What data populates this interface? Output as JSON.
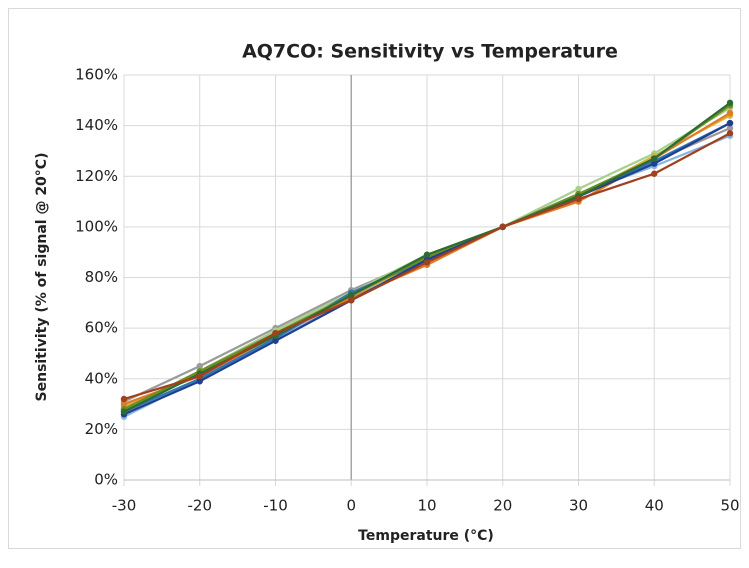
{
  "chart_data": {
    "type": "line",
    "title": "AQ7CO: Sensitivity vs Temperature",
    "x_label": "Temperature (°C)",
    "y_label": "Sensitivity (% of signal @ 20°C)",
    "x": [
      -30,
      -20,
      -10,
      0,
      10,
      20,
      30,
      40,
      50
    ],
    "xlim": [
      -30,
      50
    ],
    "xticks": [
      -30,
      -20,
      -10,
      0,
      10,
      20,
      30,
      40,
      50
    ],
    "ylim": [
      0,
      160
    ],
    "yticks": [
      {
        "value": 0,
        "label": "0%"
      },
      {
        "value": 20,
        "label": "20%"
      },
      {
        "value": 40,
        "label": "40%"
      },
      {
        "value": 60,
        "label": "60%"
      },
      {
        "value": 80,
        "label": "80%"
      },
      {
        "value": 100,
        "label": "100%"
      },
      {
        "value": 120,
        "label": "120%"
      },
      {
        "value": 140,
        "label": "140%"
      },
      {
        "value": 160,
        "label": "160%"
      }
    ],
    "grid": true,
    "series": [
      {
        "color": "#9a9a9a",
        "values": [
          31,
          45,
          60,
          75,
          88,
          100,
          113,
          126,
          139
        ]
      },
      {
        "color": "#8ab4e0",
        "values": [
          25,
          40,
          56,
          72,
          88,
          100,
          113,
          124,
          136
        ]
      },
      {
        "color": "#a8d08d",
        "values": [
          28,
          43,
          59,
          74,
          89,
          100,
          115,
          129,
          147
        ]
      },
      {
        "color": "#d6b23a",
        "values": [
          29,
          42,
          58,
          73,
          87,
          100,
          112,
          128,
          144
        ]
      },
      {
        "color": "#e07b28",
        "values": [
          30,
          41,
          57,
          72,
          85,
          100,
          110,
          127,
          145
        ]
      },
      {
        "color": "#2e75b6",
        "values": [
          27,
          40,
          56,
          74,
          87,
          100,
          112,
          126,
          141
        ]
      },
      {
        "color": "#6b8e23",
        "values": [
          28,
          43,
          58,
          73,
          88,
          100,
          113,
          127,
          148
        ]
      },
      {
        "color": "#1f3f8f",
        "values": [
          26,
          39,
          55,
          71,
          87,
          100,
          112,
          125,
          141
        ]
      },
      {
        "color": "#2e6b30",
        "values": [
          27,
          42,
          57,
          73,
          89,
          100,
          112,
          127,
          149
        ]
      },
      {
        "color": "#a0401e",
        "values": [
          32,
          41,
          58,
          71,
          86,
          100,
          111,
          121,
          137
        ]
      }
    ]
  }
}
